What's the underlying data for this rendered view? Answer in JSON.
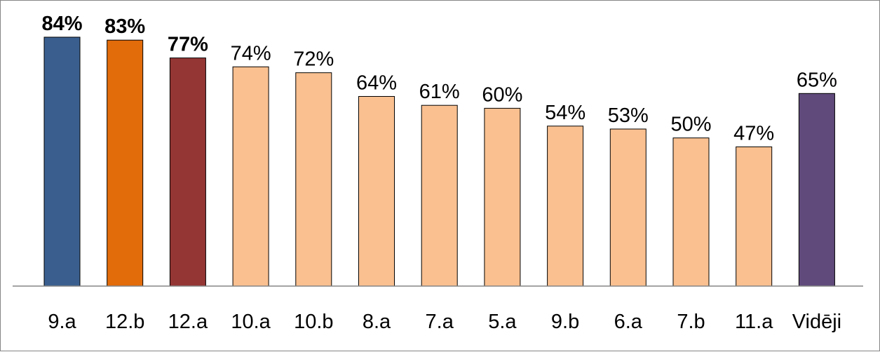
{
  "chart_data": {
    "type": "bar",
    "categories": [
      "9.a",
      "12.b",
      "12.a",
      "10.a",
      "10.b",
      "8.a",
      "7.a",
      "5.a",
      "9.b",
      "6.a",
      "7.b",
      "11.a",
      "Vidēji"
    ],
    "values": [
      84,
      83,
      77,
      74,
      72,
      64,
      61,
      60,
      54,
      53,
      50,
      47,
      65
    ],
    "data_labels": [
      "84%",
      "83%",
      "77%",
      "74%",
      "72%",
      "64%",
      "61%",
      "60%",
      "54%",
      "53%",
      "50%",
      "47%",
      "65%"
    ],
    "bold_labels": [
      true,
      true,
      true,
      false,
      false,
      false,
      false,
      false,
      false,
      false,
      false,
      false,
      false
    ],
    "colors": [
      "#3A5F8F",
      "#E26B0A",
      "#943634",
      "#FAC090",
      "#FAC090",
      "#FAC090",
      "#FAC090",
      "#FAC090",
      "#FAC090",
      "#FAC090",
      "#FAC090",
      "#FAC090",
      "#604A7B"
    ],
    "ylim": [
      0,
      84
    ],
    "grid": false,
    "legend": "none",
    "title": "",
    "xlabel": "",
    "ylabel": ""
  }
}
